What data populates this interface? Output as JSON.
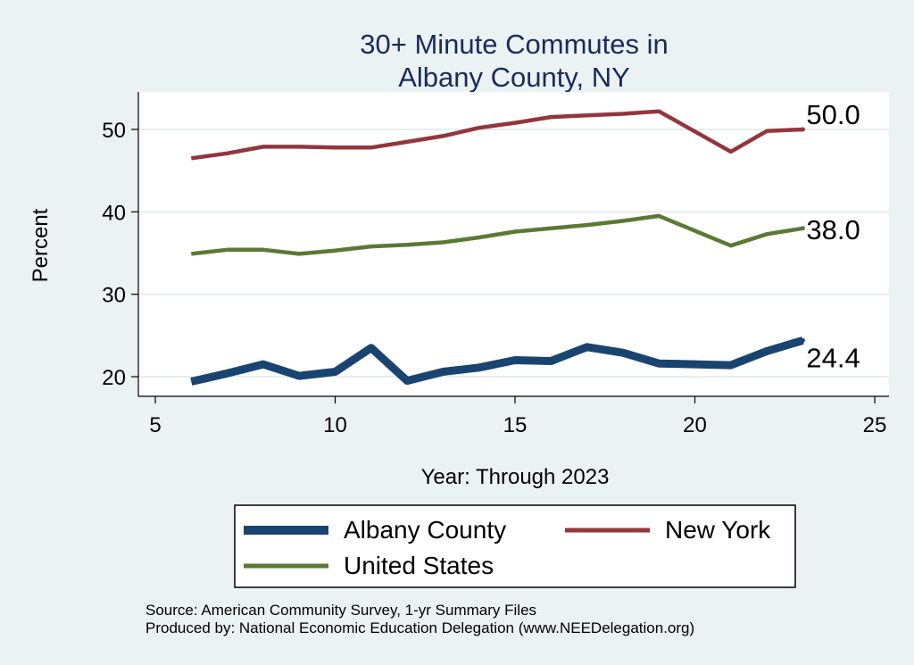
{
  "chart_data": {
    "type": "line",
    "title_lines": [
      "30+ Minute Commutes in",
      "Albany County, NY"
    ],
    "xlabel": "Year: Through 2023",
    "ylabel": "Percent",
    "xlim": [
      5,
      25
    ],
    "ylim": [
      18,
      54
    ],
    "x_ticks": [
      5,
      10,
      15,
      20,
      25
    ],
    "y_ticks": [
      20,
      30,
      40,
      50
    ],
    "grid": true,
    "x": [
      6,
      7,
      8,
      9,
      10,
      11,
      12,
      13,
      14,
      15,
      16,
      17,
      18,
      19,
      21,
      22,
      23
    ],
    "series": [
      {
        "name": "Albany County",
        "color": "#1a4470",
        "values": [
          19.4,
          20.4,
          21.5,
          20.1,
          20.6,
          23.5,
          19.5,
          20.6,
          21.1,
          22.0,
          21.9,
          23.6,
          22.9,
          21.6,
          21.4,
          23.1,
          24.4
        ],
        "end_label": "24.4"
      },
      {
        "name": "New York",
        "color": "#93363b",
        "values": [
          46.5,
          47.1,
          47.9,
          47.9,
          47.8,
          47.8,
          48.5,
          49.2,
          50.2,
          50.8,
          51.5,
          51.7,
          51.9,
          52.2,
          47.3,
          49.8,
          50.0
        ],
        "end_label": "50.0"
      },
      {
        "name": "United States",
        "color": "#5a7a34",
        "values": [
          34.9,
          35.4,
          35.4,
          34.9,
          35.3,
          35.8,
          36.0,
          36.3,
          36.9,
          37.6,
          38.0,
          38.4,
          38.9,
          39.5,
          35.9,
          37.3,
          38.0
        ],
        "end_label": "38.0"
      }
    ],
    "legend": {
      "position": "bottom",
      "entries": [
        "Albany County",
        "New York",
        "United States"
      ]
    }
  },
  "notes": {
    "source": "Source: American Community Survey, 1-yr Summary Files",
    "produced": "Produced by: National Economic Education Delegation (www.NEEDelegation.org)"
  },
  "colors": {
    "background": "#eaf2f3",
    "plot_background": "#ffffff",
    "grid": "#e6eef0",
    "title": "#1a2b5c"
  }
}
